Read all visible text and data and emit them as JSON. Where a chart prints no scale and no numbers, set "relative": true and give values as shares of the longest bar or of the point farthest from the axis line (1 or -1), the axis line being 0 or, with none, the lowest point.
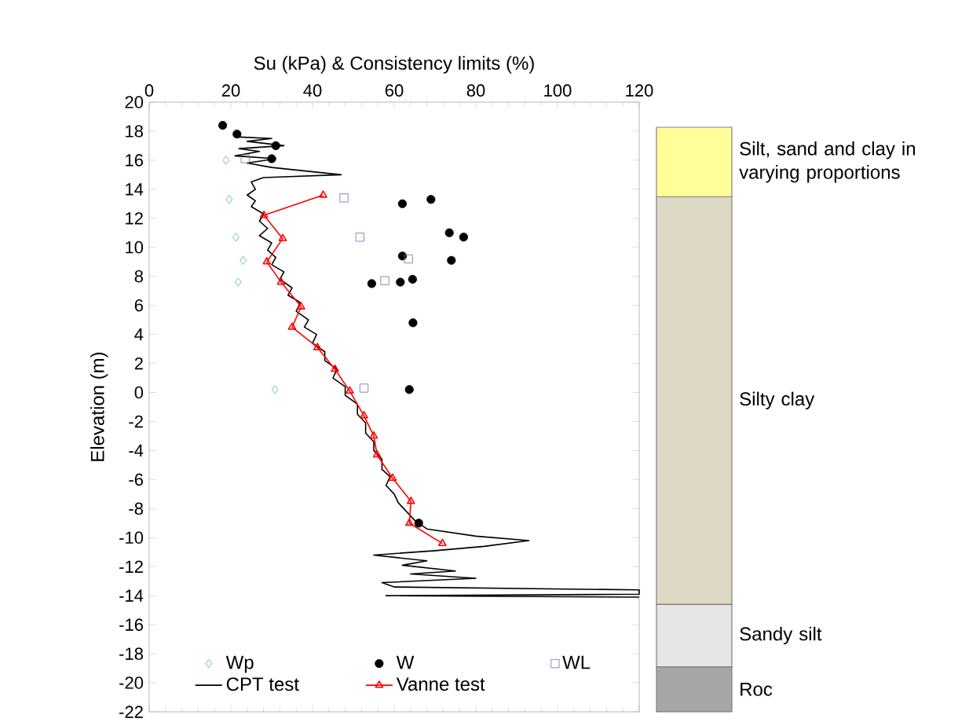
{
  "chart_data": [
    {
      "type": "scatter",
      "xlabel": "Su (kPa) & Consistency limits (%)",
      "ylabel": "Elevation (m)",
      "xlim": [
        0,
        120
      ],
      "xticks": [
        0,
        20,
        40,
        60,
        80,
        100,
        120
      ],
      "ylim": [
        -22,
        20
      ],
      "yticks": [
        -22,
        -20,
        -18,
        -16,
        -14,
        -12,
        -10,
        -8,
        -6,
        -4,
        -2,
        0,
        2,
        4,
        6,
        8,
        10,
        12,
        14,
        16,
        18,
        20
      ],
      "legend": "bottom",
      "series": [
        {
          "name": "Wp",
          "type": "scatter",
          "marker": "diamond",
          "color": "#4bacc6",
          "x": [
            18.8,
            19.6,
            21.2,
            23,
            21.8,
            30.8
          ],
          "values": [
            16.0,
            13.3,
            10.7,
            9.1,
            7.6,
            0.2
          ]
        },
        {
          "name": "W",
          "type": "scatter",
          "marker": "circle",
          "color": "#000000",
          "x": [
            18,
            21.5,
            31,
            30,
            62,
            69,
            73.5,
            77,
            62,
            74,
            54.5,
            61.5,
            64.5,
            64.6,
            63.7,
            66
          ],
          "values": [
            18.4,
            17.8,
            17.0,
            16.1,
            13.0,
            13.3,
            11.0,
            10.7,
            9.4,
            9.1,
            7.5,
            7.6,
            7.8,
            4.8,
            0.2,
            -9.0
          ]
        },
        {
          "name": "WL",
          "type": "scatter",
          "marker": "square",
          "color": "#8064a2",
          "x": [
            23.5,
            47.7,
            51.6,
            63.5,
            57.7,
            52.6
          ],
          "values": [
            16.1,
            13.4,
            10.7,
            9.2,
            7.7,
            0.3
          ]
        },
        {
          "name": "CPT test",
          "type": "line",
          "marker": "none",
          "line_style": "solid",
          "color": "#000000",
          "x": [
            22,
            30,
            24,
            33,
            22,
            27,
            21,
            31,
            24,
            30,
            47,
            28,
            25,
            26,
            24,
            26,
            25,
            28,
            27,
            29,
            27,
            30,
            29,
            31,
            30,
            33,
            32,
            35,
            34,
            37,
            36,
            39,
            38,
            41,
            40,
            43,
            43,
            46,
            45,
            48,
            48,
            51,
            51,
            53,
            53,
            55,
            55,
            57,
            57,
            59,
            58,
            60,
            61,
            63,
            65,
            68,
            80,
            93,
            82,
            70,
            55,
            68,
            62,
            75,
            64,
            80,
            57,
            60,
            120,
            120,
            58,
            120
          ],
          "values": [
            17.6,
            17.5,
            17.3,
            17.0,
            16.8,
            16.6,
            16.3,
            16.1,
            15.8,
            15.5,
            15.0,
            14.8,
            14.5,
            14.0,
            13.6,
            13.2,
            12.8,
            12.3,
            11.8,
            11.3,
            10.8,
            10.3,
            9.8,
            9.3,
            8.8,
            8.3,
            7.8,
            7.2,
            6.7,
            6.2,
            5.6,
            5.0,
            4.5,
            4.0,
            3.4,
            2.8,
            2.2,
            1.6,
            1.0,
            0.4,
            -0.2,
            -0.8,
            -1.5,
            -2.1,
            -2.8,
            -3.4,
            -4.0,
            -4.6,
            -5.3,
            -5.8,
            -6.4,
            -7.0,
            -7.6,
            -8.2,
            -8.8,
            -9.4,
            -9.9,
            -10.2,
            -10.6,
            -10.9,
            -11.2,
            -11.6,
            -11.9,
            -12.3,
            -12.5,
            -12.8,
            -13.1,
            -13.4,
            -13.6,
            -13.9,
            -14.0,
            -14.1
          ]
        },
        {
          "name": "Vanne test",
          "type": "line",
          "marker": "triangle",
          "line_style": "solid",
          "color": "#ff0000",
          "x": [
            42.6,
            28.1,
            32.7,
            28.8,
            32.3,
            37.2,
            35,
            41.2,
            45.5,
            49.1,
            52.6,
            55,
            55.8,
            59.6,
            64.1,
            63.7,
            71.8
          ],
          "values": [
            13.6,
            12.2,
            10.6,
            9.0,
            7.6,
            5.9,
            4.5,
            3.1,
            1.6,
            0.1,
            -1.6,
            -3.0,
            -4.3,
            -5.9,
            -7.5,
            -9.0,
            -10.4
          ]
        }
      ]
    },
    {
      "type": "bar",
      "stacked": true,
      "relative": true,
      "categories": [
        null
      ],
      "series": [
        {
          "name": "Roc",
          "color": "#a6a6a6",
          "values": [
            0.077
          ]
        },
        {
          "name": "Sandy silt",
          "color": "#e6e6e6",
          "values": [
            0.107
          ]
        },
        {
          "name": "Silty clay",
          "color": "#ddd8c4",
          "values": [
            0.697
          ]
        },
        {
          "name": "Silt, sand and clay in varying proportions",
          "color": "#ffff99",
          "values": [
            0.119
          ]
        }
      ]
    }
  ]
}
